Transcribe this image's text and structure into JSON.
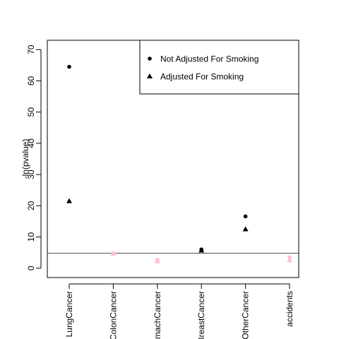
{
  "chart_data": {
    "type": "scatter",
    "title": "",
    "xlabel": "",
    "ylabel": "-ln(pvalue)",
    "categories": [
      "LungCancer",
      "ColonCancer",
      "StomachCancer",
      "BreastCancer",
      "OtherCancer",
      "accidents"
    ],
    "ylim": [
      -3,
      73
    ],
    "yticks": [
      0,
      10,
      20,
      30,
      40,
      50,
      60,
      70
    ],
    "reference_line": 4.8,
    "legend_position": "top-right",
    "highlight_color": "#000000",
    "below_threshold_color": "#ffc0cb",
    "series": [
      {
        "name": "Not Adjusted For Smoking",
        "marker": "circle",
        "values": [
          64.5,
          4.8,
          2.7,
          6.0,
          16.6,
          3.5
        ]
      },
      {
        "name": "Adjusted For Smoking",
        "marker": "triangle",
        "values": [
          21.5,
          4.7,
          2.3,
          5.7,
          12.5,
          2.6
        ]
      }
    ]
  }
}
